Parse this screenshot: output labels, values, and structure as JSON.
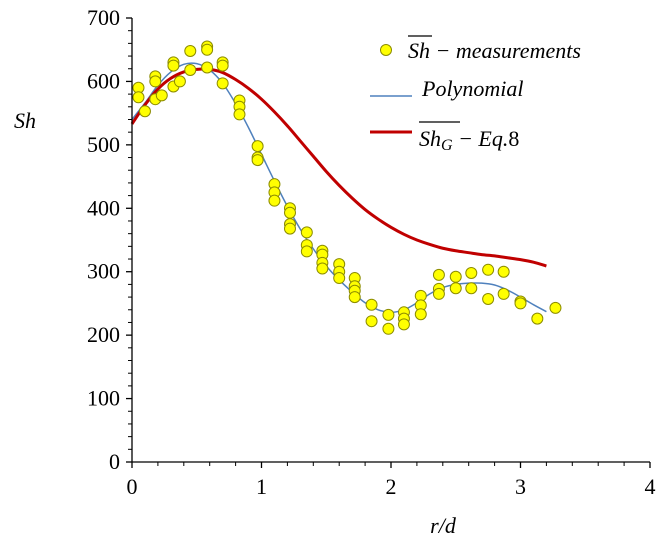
{
  "chart_data": {
    "type": "scatter",
    "xlabel": "r/d",
    "ylabel": "Sh",
    "xlim": [
      0,
      4
    ],
    "ylim": [
      0,
      700
    ],
    "xticks": [
      "0",
      "1",
      "2",
      "3",
      "4"
    ],
    "yticks": [
      "0",
      "100",
      "200",
      "300",
      "400",
      "500",
      "600",
      "700"
    ],
    "grid": false,
    "legend_position": "top-right",
    "colors": {
      "marker_fill": "#ffff00",
      "marker_edge": "#8c8c00",
      "polynomial": "#4f81bd",
      "equation": "#c00000"
    },
    "legend": {
      "measurements": {
        "symbol": "Sh",
        "text": " − measurements"
      },
      "polynomial": {
        "text": "Polynomial"
      },
      "equation": {
        "symbol": "Sh",
        "subscript": "G",
        "text": " − Eq.",
        "suffix": "8"
      }
    },
    "series": [
      {
        "name": "Sh − measurements",
        "kind": "scatter",
        "points": [
          [
            0.05,
            590
          ],
          [
            0.05,
            575
          ],
          [
            0.1,
            553
          ],
          [
            0.18,
            608
          ],
          [
            0.18,
            600
          ],
          [
            0.18,
            572
          ],
          [
            0.23,
            578
          ],
          [
            0.32,
            630
          ],
          [
            0.32,
            625
          ],
          [
            0.32,
            592
          ],
          [
            0.37,
            600
          ],
          [
            0.45,
            648
          ],
          [
            0.45,
            618
          ],
          [
            0.58,
            655
          ],
          [
            0.58,
            650
          ],
          [
            0.58,
            622
          ],
          [
            0.7,
            630
          ],
          [
            0.7,
            625
          ],
          [
            0.7,
            597
          ],
          [
            0.83,
            570
          ],
          [
            0.83,
            560
          ],
          [
            0.83,
            548
          ],
          [
            0.97,
            498
          ],
          [
            0.97,
            480
          ],
          [
            0.97,
            476
          ],
          [
            1.1,
            438
          ],
          [
            1.1,
            425
          ],
          [
            1.1,
            412
          ],
          [
            1.22,
            400
          ],
          [
            1.22,
            393
          ],
          [
            1.22,
            375
          ],
          [
            1.22,
            368
          ],
          [
            1.35,
            362
          ],
          [
            1.35,
            342
          ],
          [
            1.35,
            332
          ],
          [
            1.47,
            333
          ],
          [
            1.47,
            327
          ],
          [
            1.47,
            314
          ],
          [
            1.47,
            305
          ],
          [
            1.6,
            312
          ],
          [
            1.6,
            300
          ],
          [
            1.6,
            290
          ],
          [
            1.72,
            290
          ],
          [
            1.72,
            277
          ],
          [
            1.72,
            270
          ],
          [
            1.72,
            260
          ],
          [
            1.85,
            248
          ],
          [
            1.85,
            222
          ],
          [
            1.98,
            232
          ],
          [
            1.98,
            210
          ],
          [
            2.1,
            236
          ],
          [
            2.1,
            226
          ],
          [
            2.1,
            217
          ],
          [
            2.23,
            262
          ],
          [
            2.23,
            247
          ],
          [
            2.23,
            233
          ],
          [
            2.37,
            295
          ],
          [
            2.37,
            273
          ],
          [
            2.37,
            265
          ],
          [
            2.5,
            292
          ],
          [
            2.5,
            274
          ],
          [
            2.62,
            298
          ],
          [
            2.62,
            274
          ],
          [
            2.75,
            303
          ],
          [
            2.75,
            257
          ],
          [
            2.87,
            300
          ],
          [
            2.87,
            265
          ],
          [
            3.0,
            253
          ],
          [
            3.0,
            250
          ],
          [
            3.13,
            226
          ],
          [
            3.27,
            243
          ]
        ]
      },
      {
        "name": "Polynomial",
        "kind": "line",
        "points": [
          [
            0.0,
            540
          ],
          [
            0.1,
            566
          ],
          [
            0.2,
            594
          ],
          [
            0.3,
            615
          ],
          [
            0.4,
            627
          ],
          [
            0.5,
            628
          ],
          [
            0.6,
            618
          ],
          [
            0.7,
            597
          ],
          [
            0.8,
            565
          ],
          [
            0.9,
            527
          ],
          [
            1.0,
            485
          ],
          [
            1.1,
            443
          ],
          [
            1.2,
            403
          ],
          [
            1.3,
            367
          ],
          [
            1.4,
            336
          ],
          [
            1.5,
            309
          ],
          [
            1.6,
            287
          ],
          [
            1.7,
            268
          ],
          [
            1.8,
            251
          ],
          [
            1.9,
            240
          ],
          [
            2.0,
            236
          ],
          [
            2.1,
            240
          ],
          [
            2.2,
            251
          ],
          [
            2.3,
            265
          ],
          [
            2.4,
            275
          ],
          [
            2.5,
            280
          ],
          [
            2.6,
            282
          ],
          [
            2.7,
            282
          ],
          [
            2.8,
            279
          ],
          [
            2.9,
            271
          ],
          [
            3.0,
            260
          ],
          [
            3.1,
            248
          ],
          [
            3.2,
            237
          ]
        ]
      },
      {
        "name": "Sh_G − Eq.8",
        "kind": "line",
        "points": [
          [
            0.0,
            533
          ],
          [
            0.1,
            563
          ],
          [
            0.2,
            588
          ],
          [
            0.3,
            605
          ],
          [
            0.4,
            615
          ],
          [
            0.5,
            619
          ],
          [
            0.6,
            619
          ],
          [
            0.7,
            614
          ],
          [
            0.8,
            603
          ],
          [
            0.9,
            589
          ],
          [
            1.0,
            572
          ],
          [
            1.1,
            552
          ],
          [
            1.2,
            530
          ],
          [
            1.3,
            506
          ],
          [
            1.4,
            482
          ],
          [
            1.5,
            458
          ],
          [
            1.6,
            436
          ],
          [
            1.7,
            416
          ],
          [
            1.8,
            398
          ],
          [
            1.9,
            383
          ],
          [
            2.0,
            370
          ],
          [
            2.1,
            359
          ],
          [
            2.2,
            350
          ],
          [
            2.3,
            343
          ],
          [
            2.4,
            337
          ],
          [
            2.5,
            333
          ],
          [
            2.6,
            330
          ],
          [
            2.7,
            327
          ],
          [
            2.8,
            325
          ],
          [
            2.9,
            322
          ],
          [
            3.0,
            319
          ],
          [
            3.1,
            315
          ],
          [
            3.2,
            309
          ]
        ]
      }
    ]
  }
}
